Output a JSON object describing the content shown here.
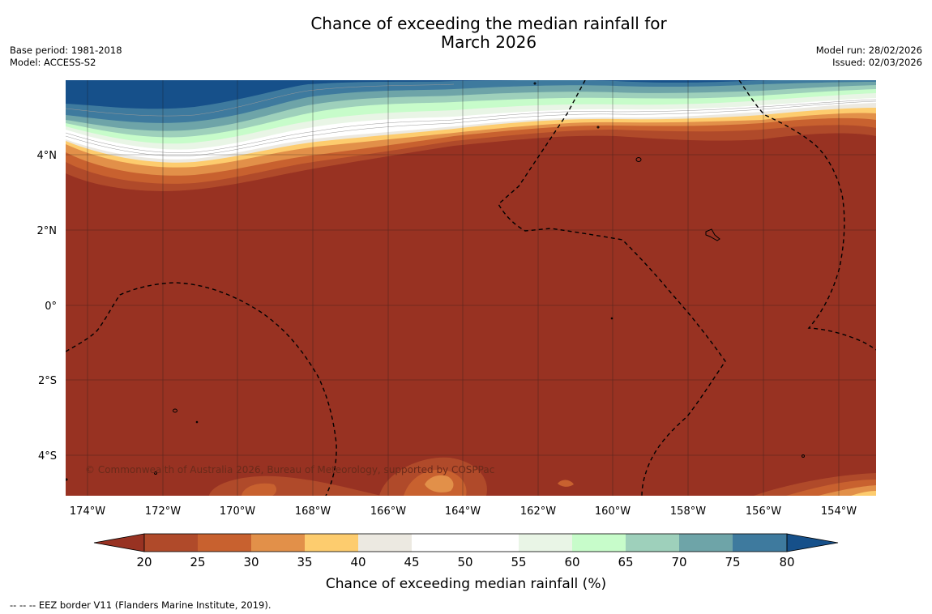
{
  "title": {
    "line1": "Chance of exceeding the median rainfall for",
    "line2": "March 2026"
  },
  "meta_left": {
    "base_period": "Base period: 1981-2018",
    "model": "Model: ACCESS-S2"
  },
  "meta_right": {
    "model_run": "Model run: 28/02/2026",
    "issued": "Issued: 02/03/2026"
  },
  "map": {
    "lat_labels": [
      "4°N",
      "2°N",
      "0°",
      "2°S",
      "4°S"
    ],
    "lon_labels": [
      "174°W",
      "172°W",
      "170°W",
      "168°W",
      "166°W",
      "164°W",
      "162°W",
      "160°W",
      "158°W",
      "156°W",
      "154°W"
    ],
    "copyright": "© Commonwealth of Australia 2026, Bureau of Meteorology, supported by COSPPac",
    "colors": {
      "dominant": "#983222",
      "ocean_shallow": "#c05a2c"
    }
  },
  "colorbar": {
    "ticks": [
      "20",
      "25",
      "30",
      "35",
      "40",
      "45",
      "50",
      "55",
      "60",
      "65",
      "70",
      "75",
      "80"
    ],
    "colors": [
      "#983222",
      "#b04a2a",
      "#c8612f",
      "#e29049",
      "#fdcc6e",
      "#ece9e1",
      "#ffffff",
      "#ffffff",
      "#e9f5e6",
      "#c7fcca",
      "#9ed0bb",
      "#6ea4a8",
      "#3e7a9e",
      "#16508a"
    ],
    "label": "Chance of exceeding median rainfall (%)"
  },
  "footnote": "--  --  -- EEZ border V11 (Flanders Marine Institute, 2019)."
}
